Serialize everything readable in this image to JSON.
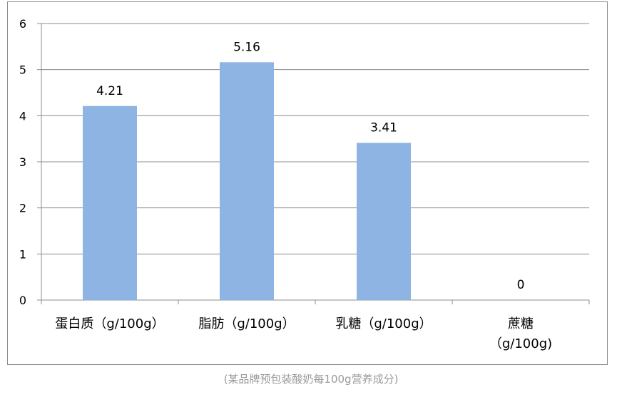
{
  "caption": "(某品牌预包装酸奶每100g营养成分)",
  "colors": {
    "bar": "#8EB4E3",
    "grid": "#8c8c8c",
    "axis": "#8c8c8c",
    "text": "#000000",
    "caption": "#9a9a9a"
  },
  "chart_data": {
    "type": "bar",
    "categories": [
      "蛋白质（g/100g）",
      "脂肪（g/100g）",
      "乳糖（g/100g）",
      "蔗糖（g/100g)"
    ],
    "category_lines": [
      [
        "蛋白质（g/100g）"
      ],
      [
        "脂肪（g/100g）"
      ],
      [
        "乳糖（g/100g）"
      ],
      [
        "蔗糖",
        "（g/100g)"
      ]
    ],
    "values": [
      4.21,
      5.16,
      3.41,
      0
    ],
    "data_labels": [
      "4.21",
      "5.16",
      "3.41",
      "0"
    ],
    "ylim": [
      0,
      6
    ],
    "yticks": [
      "0",
      "1",
      "2",
      "3",
      "4",
      "5",
      "6"
    ],
    "grid": true,
    "legend": "none"
  }
}
